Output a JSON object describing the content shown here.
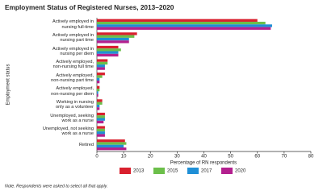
{
  "chart_data": {
    "type": "bar",
    "orientation": "horizontal",
    "title": "Employment Status of Registered Nurses, 2013–2020",
    "y_label": "Employment status",
    "x_label": "Percentage of RN respondents",
    "note": "Note. Respondents were asked to select all that apply.",
    "categories": [
      "Actively employed in\nnursing full-time",
      "Actively employed in\nnursing part time",
      "Actively employed in\nnursing per diem",
      "Actively employed,\nnon-nursing full time",
      "Actively employed,\nnon-nursing part time",
      "Actively employed,\nnon-nursing per diem",
      "Working in nursing\nonly as a volunteer",
      "Unemployed, seeking\nwork as a nurse",
      "Unemployed, not seeking\nwork as a nurse",
      "Retired"
    ],
    "series": [
      {
        "name": "2013",
        "color": "#d9202e",
        "values": [
          60,
          15,
          8,
          4,
          3,
          1,
          2,
          3,
          3,
          10.5
        ]
      },
      {
        "name": "2015",
        "color": "#6cbf4a",
        "values": [
          63,
          14,
          9,
          4,
          2,
          1,
          2,
          3,
          3,
          11
        ]
      },
      {
        "name": "2017",
        "color": "#1f8fd6",
        "values": [
          65.5,
          12,
          8,
          3,
          1,
          0.5,
          1,
          3,
          3,
          10
        ]
      },
      {
        "name": "2020",
        "color": "#b3208f",
        "values": [
          65,
          12,
          8,
          3,
          1,
          0.5,
          1,
          2.5,
          3,
          11
        ]
      }
    ],
    "xlim": [
      0,
      80
    ],
    "xticks": [
      0,
      10,
      20,
      30,
      40,
      50,
      60,
      70,
      80
    ],
    "grid": false,
    "legend": "bottom"
  }
}
